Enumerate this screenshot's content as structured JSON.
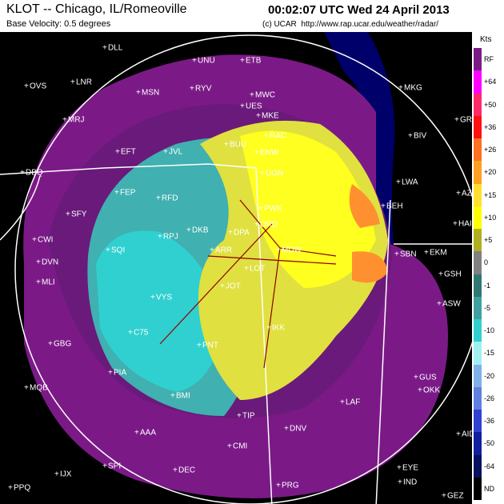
{
  "header": {
    "title": "KLOT -- Chicago, IL/Romeoville",
    "subtitle": "Base Velocity: 0.5 degrees",
    "timestamp": "00:02:07 UTC Wed 24 April 2013",
    "credit": "(c) UCAR  http://www.rap.ucar.edu/weather/radar/"
  },
  "legend": {
    "unit": "Kts",
    "items": [
      {
        "label": "RF",
        "color": "#7b1a87"
      },
      {
        "label": "+64",
        "color": "#ff00ff"
      },
      {
        "label": "+50",
        "color": "#ff2a6a"
      },
      {
        "label": "+36",
        "color": "#ff1010"
      },
      {
        "label": "+26",
        "color": "#ff7020"
      },
      {
        "label": "+20",
        "color": "#ffa020"
      },
      {
        "label": "+15",
        "color": "#ffe030"
      },
      {
        "label": "+10",
        "color": "#ffff00"
      },
      {
        "label": "+5",
        "color": "#b0b020"
      },
      {
        "label": "0",
        "color": "#808080"
      },
      {
        "label": "-1",
        "color": "#307870"
      },
      {
        "label": "-5",
        "color": "#40a0a0"
      },
      {
        "label": "-10",
        "color": "#30d0d0"
      },
      {
        "label": "-15",
        "color": "#a0f0f0"
      },
      {
        "label": "-20",
        "color": "#80b0e8"
      },
      {
        "label": "-26",
        "color": "#6080e0"
      },
      {
        "label": "-36",
        "color": "#3040d0"
      },
      {
        "label": "-50",
        "color": "#1020a0"
      },
      {
        "label": "-64",
        "color": "#081060"
      },
      {
        "label": "ND",
        "color": "#000000"
      }
    ]
  },
  "stations": [
    "UNU",
    "ETB",
    "DLL",
    "LNR",
    "OVS",
    "MSN",
    "RYV",
    "MWC",
    "UES",
    "MKE",
    "GRR",
    "MRJ",
    "RAC",
    "BIV",
    "EFT",
    "JVL",
    "BUU",
    "ENW",
    "DBQ",
    "UGN",
    "MKG",
    "LWA",
    "AZO",
    "FEP",
    "RFD",
    "BEH",
    "SFY",
    "PWK",
    "HAI",
    "ORD",
    "CWI",
    "DKB",
    "DPA",
    "RPJ",
    "ARR",
    "MDW",
    "SBN",
    "EKM",
    "SQI",
    "DVN",
    "MLI",
    "GSH",
    "LOT",
    "JOT",
    "VYS",
    "ASW",
    "C75",
    "IKK",
    "GBG",
    "PNT",
    "PIA",
    "GUS",
    "MQB",
    "OKK",
    "BMI",
    "LAF",
    "TIP",
    "AAA",
    "DNV",
    "AID",
    "CMI",
    "SPI",
    "IJX",
    "DEC",
    "EYE",
    "PPQ",
    "IND",
    "PRG",
    "GEZ"
  ]
}
